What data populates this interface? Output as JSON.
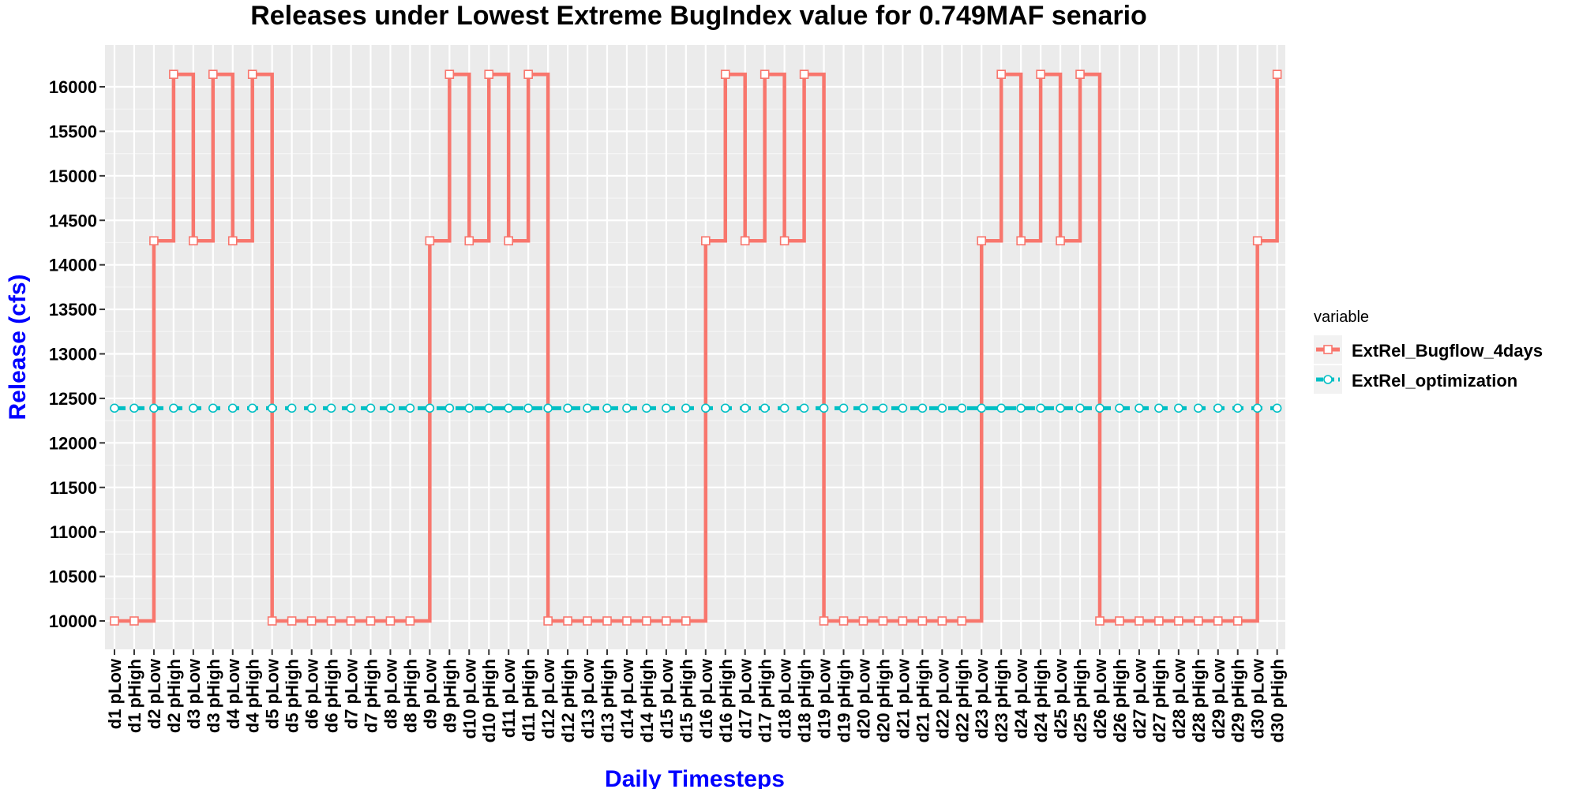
{
  "chart_data": {
    "type": "line",
    "title": "Releases under Lowest Extreme BugIndex value for 0.749MAF senario",
    "xlabel": "Daily Timesteps",
    "ylabel": "Release (cfs)",
    "ylim": [
      9700,
      16300
    ],
    "yticks": [
      10000,
      10500,
      11000,
      11500,
      12000,
      12500,
      13000,
      13500,
      14000,
      14500,
      15000,
      15500,
      16000
    ],
    "grid": true,
    "line_style": "step",
    "legend_title": "variable",
    "legend_position": "right",
    "categories": [
      "d1 pLow",
      "d1 pHigh",
      "d2 pLow",
      "d2 pHigh",
      "d3 pLow",
      "d3 pHigh",
      "d4 pLow",
      "d4 pHigh",
      "d5 pLow",
      "d5 pHigh",
      "d6 pLow",
      "d6 pHigh",
      "d7 pLow",
      "d7 pHigh",
      "d8 pLow",
      "d8 pHigh",
      "d9 pLow",
      "d9 pHigh",
      "d10 pLow",
      "d10 pHigh",
      "d11 pLow",
      "d11 pHigh",
      "d12 pLow",
      "d12 pHigh",
      "d13 pLow",
      "d13 pHigh",
      "d14 pLow",
      "d14 pHigh",
      "d15 pLow",
      "d15 pHigh",
      "d16 pLow",
      "d16 pHigh",
      "d17 pLow",
      "d17 pHigh",
      "d18 pLow",
      "d18 pHigh",
      "d19 pLow",
      "d19 pHigh",
      "d20 pLow",
      "d20 pHigh",
      "d21 pLow",
      "d21 pHigh",
      "d22 pLow",
      "d22 pHigh",
      "d23 pLow",
      "d23 pHigh",
      "d24 pLow",
      "d24 pHigh",
      "d25 pLow",
      "d25 pHigh",
      "d26 pLow",
      "d26 pHigh",
      "d27 pLow",
      "d27 pHigh",
      "d28 pLow",
      "d28 pHigh",
      "d29 pLow",
      "d29 pHigh",
      "d30 pLow",
      "d30 pHigh"
    ],
    "series": [
      {
        "name": "ExtRel_Bugflow_4days",
        "color": "#F8766D",
        "marker": "square",
        "values": [
          10000,
          10000,
          14270,
          16140,
          14270,
          16140,
          14270,
          16140,
          10000,
          10000,
          10000,
          10000,
          10000,
          10000,
          10000,
          10000,
          14270,
          16140,
          14270,
          16140,
          14270,
          16140,
          10000,
          10000,
          10000,
          10000,
          10000,
          10000,
          10000,
          10000,
          14270,
          16140,
          14270,
          16140,
          14270,
          16140,
          10000,
          10000,
          10000,
          10000,
          10000,
          10000,
          10000,
          10000,
          14270,
          16140,
          14270,
          16140,
          14270,
          16140,
          10000,
          10000,
          10000,
          10000,
          10000,
          10000,
          10000,
          10000,
          14270,
          16140
        ]
      },
      {
        "name": "ExtRel_optimization",
        "color": "#00BFC4",
        "marker": "circle",
        "line": "dashed",
        "values": [
          12390,
          12390,
          12390,
          12390,
          12390,
          12390,
          12390,
          12390,
          12390,
          12390,
          12390,
          12390,
          12390,
          12390,
          12390,
          12390,
          12390,
          12390,
          12390,
          12390,
          12390,
          12390,
          12390,
          12390,
          12390,
          12390,
          12390,
          12390,
          12390,
          12390,
          12390,
          12390,
          12390,
          12390,
          12390,
          12390,
          12390,
          12390,
          12390,
          12390,
          12390,
          12390,
          12390,
          12390,
          12390,
          12390,
          12390,
          12390,
          12390,
          12390,
          12390,
          12390,
          12390,
          12390,
          12390,
          12390,
          12390,
          12390,
          12390,
          12390
        ]
      }
    ]
  }
}
